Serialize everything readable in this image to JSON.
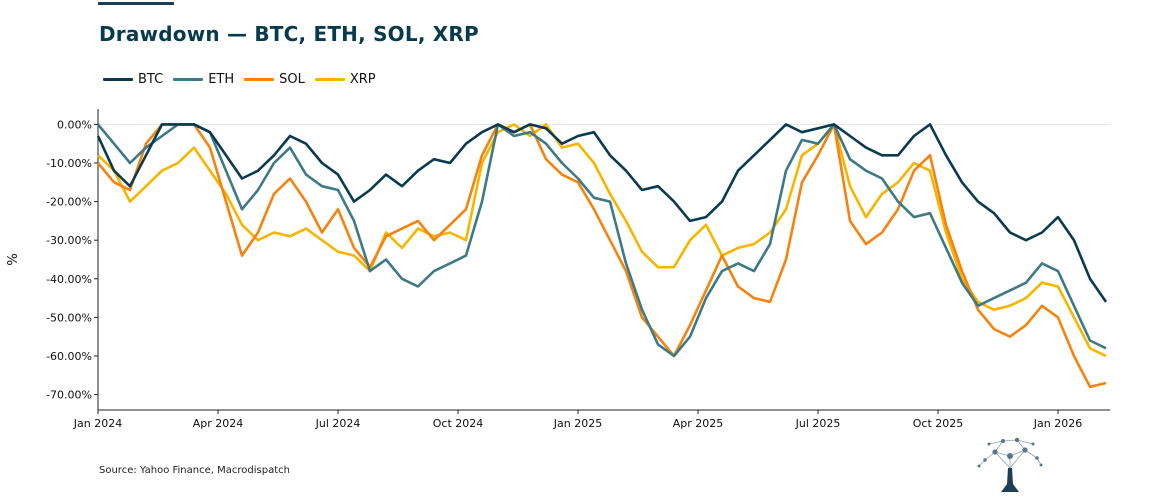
{
  "page": {
    "title": "Drawdown — BTC, ETH, SOL, XRP",
    "source": "Source: Yahoo Finance, Macrodispatch"
  },
  "colors": {
    "BTC": "#0a3a4f",
    "ETH": "#3e7a86",
    "SOL": "#f5830f",
    "XRP": "#f7b500"
  },
  "icons": {
    "logo": "tree-network-logo"
  },
  "chart_data": {
    "type": "line",
    "title": "Drawdown — BTC, ETH, SOL, XRP",
    "xlabel": "",
    "ylabel": "%",
    "ylim": [
      -74,
      4
    ],
    "xlim": [
      0,
      25.3
    ],
    "x_unit": "months since Jan 2024",
    "yticks": [
      0,
      -10,
      -20,
      -30,
      -40,
      -50,
      -60,
      -70
    ],
    "ytick_labels": [
      "0.00%",
      "-10.00%",
      "-20.00%",
      "-30.00%",
      "-40.00%",
      "-50.00%",
      "-60.00%",
      "-70.00%"
    ],
    "xticks": [
      0,
      3,
      6,
      9,
      12,
      15,
      18,
      21,
      24
    ],
    "xtick_labels": [
      "Jan 2024",
      "Apr 2024",
      "Jul 2024",
      "Oct 2024",
      "Jan 2025",
      "Apr 2025",
      "Jul 2025",
      "Oct 2025",
      "Jan 2026"
    ],
    "grid": "zero-line only",
    "legend_position": "top-left",
    "series": [
      {
        "name": "BTC",
        "x": [
          0,
          0.4,
          0.8,
          1.2,
          1.6,
          2.0,
          2.4,
          2.8,
          3.2,
          3.6,
          4.0,
          4.4,
          4.8,
          5.2,
          5.6,
          6.0,
          6.4,
          6.8,
          7.2,
          7.6,
          8.0,
          8.4,
          8.8,
          9.2,
          9.6,
          10.0,
          10.4,
          10.8,
          11.2,
          11.6,
          12.0,
          12.4,
          12.8,
          13.2,
          13.6,
          14.0,
          14.4,
          14.8,
          15.2,
          15.6,
          16.0,
          16.4,
          16.8,
          17.2,
          17.6,
          18.0,
          18.4,
          18.8,
          19.2,
          19.6,
          20.0,
          20.4,
          20.8,
          21.2,
          21.6,
          22.0,
          22.4,
          22.8,
          23.2,
          23.6,
          24.0,
          24.4,
          24.8,
          25.2
        ],
        "values": [
          -3,
          -12,
          -16,
          -8,
          0,
          0,
          0,
          -2,
          -8,
          -14,
          -12,
          -8,
          -3,
          -5,
          -10,
          -13,
          -20,
          -17,
          -13,
          -16,
          -12,
          -9,
          -10,
          -5,
          -2,
          0,
          -2,
          0,
          -1,
          -5,
          -3,
          -2,
          -8,
          -12,
          -17,
          -16,
          -20,
          -25,
          -24,
          -20,
          -12,
          -8,
          -4,
          0,
          -2,
          -1,
          0,
          -3,
          -6,
          -8,
          -8,
          -3,
          0,
          -8,
          -15,
          -20,
          -23,
          -28,
          -30,
          -28,
          -24,
          -30,
          -40,
          -46
        ]
      },
      {
        "name": "ETH",
        "x": [
          0,
          0.4,
          0.8,
          1.2,
          1.6,
          2.0,
          2.4,
          2.8,
          3.2,
          3.6,
          4.0,
          4.4,
          4.8,
          5.2,
          5.6,
          6.0,
          6.4,
          6.8,
          7.2,
          7.6,
          8.0,
          8.4,
          8.8,
          9.2,
          9.6,
          10.0,
          10.4,
          10.8,
          11.2,
          11.6,
          12.0,
          12.4,
          12.8,
          13.2,
          13.6,
          14.0,
          14.4,
          14.8,
          15.2,
          15.6,
          16.0,
          16.4,
          16.8,
          17.2,
          17.6,
          18.0,
          18.4,
          18.8,
          19.2,
          19.6,
          20.0,
          20.4,
          20.8,
          21.2,
          21.6,
          22.0,
          22.4,
          22.8,
          23.2,
          23.6,
          24.0,
          24.4,
          24.8,
          25.2
        ],
        "values": [
          0,
          -5,
          -10,
          -6,
          -3,
          0,
          0,
          -2,
          -12,
          -22,
          -17,
          -10,
          -6,
          -13,
          -16,
          -17,
          -25,
          -38,
          -35,
          -40,
          -42,
          -38,
          -36,
          -34,
          -20,
          0,
          -3,
          -2,
          -5,
          -10,
          -14,
          -19,
          -20,
          -36,
          -48,
          -57,
          -60,
          -55,
          -45,
          -38,
          -36,
          -38,
          -31,
          -12,
          -4,
          -5,
          0,
          -9,
          -12,
          -14,
          -20,
          -24,
          -23,
          -32,
          -41,
          -47,
          -45,
          -43,
          -41,
          -36,
          -38,
          -47,
          -56,
          -58
        ]
      },
      {
        "name": "SOL",
        "x": [
          0,
          0.4,
          0.8,
          1.2,
          1.6,
          2.0,
          2.4,
          2.8,
          3.2,
          3.6,
          4.0,
          4.4,
          4.8,
          5.2,
          5.6,
          6.0,
          6.4,
          6.8,
          7.2,
          7.6,
          8.0,
          8.4,
          8.8,
          9.2,
          9.6,
          10.0,
          10.4,
          10.8,
          11.2,
          11.6,
          12.0,
          12.4,
          12.8,
          13.2,
          13.6,
          14.0,
          14.4,
          14.8,
          15.2,
          15.6,
          16.0,
          16.4,
          16.8,
          17.2,
          17.6,
          18.0,
          18.4,
          18.8,
          19.2,
          19.6,
          20.0,
          20.4,
          20.8,
          21.2,
          21.6,
          22.0,
          22.4,
          22.8,
          23.2,
          23.6,
          24.0,
          24.4,
          24.8,
          25.2
        ],
        "values": [
          -10,
          -15,
          -17,
          -5,
          0,
          0,
          0,
          -6,
          -20,
          -34,
          -28,
          -18,
          -14,
          -20,
          -28,
          -22,
          -32,
          -37,
          -29,
          -27,
          -25,
          -30,
          -26,
          -22,
          -8,
          0,
          -2,
          0,
          -9,
          -13,
          -15,
          -22,
          -30,
          -38,
          -50,
          -55,
          -60,
          -52,
          -43,
          -34,
          -42,
          -45,
          -46,
          -35,
          -15,
          -8,
          0,
          -25,
          -31,
          -28,
          -22,
          -12,
          -8,
          -26,
          -38,
          -48,
          -53,
          -55,
          -52,
          -47,
          -50,
          -60,
          -68,
          -67
        ]
      },
      {
        "name": "XRP",
        "x": [
          0,
          0.4,
          0.8,
          1.2,
          1.6,
          2.0,
          2.4,
          2.8,
          3.2,
          3.6,
          4.0,
          4.4,
          4.8,
          5.2,
          5.6,
          6.0,
          6.4,
          6.8,
          7.2,
          7.6,
          8.0,
          8.4,
          8.8,
          9.2,
          9.6,
          10.0,
          10.4,
          10.8,
          11.2,
          11.6,
          12.0,
          12.4,
          12.8,
          13.2,
          13.6,
          14.0,
          14.4,
          14.8,
          15.2,
          15.6,
          16.0,
          16.4,
          16.8,
          17.2,
          17.6,
          18.0,
          18.4,
          18.8,
          19.2,
          19.6,
          20.0,
          20.4,
          20.8,
          21.2,
          21.6,
          22.0,
          22.4,
          22.8,
          23.2,
          23.6,
          24.0,
          24.4,
          24.8,
          25.2
        ],
        "values": [
          -8,
          -12,
          -20,
          -16,
          -12,
          -10,
          -6,
          -12,
          -18,
          -26,
          -30,
          -28,
          -29,
          -27,
          -30,
          -33,
          -34,
          -38,
          -28,
          -32,
          -27,
          -29,
          -28,
          -30,
          -10,
          -2,
          0,
          -3,
          0,
          -6,
          -5,
          -10,
          -18,
          -25,
          -33,
          -37,
          -37,
          -30,
          -26,
          -34,
          -32,
          -31,
          -28,
          -22,
          -8,
          -5,
          0,
          -16,
          -24,
          -18,
          -15,
          -10,
          -12,
          -28,
          -40,
          -46,
          -48,
          -47,
          -45,
          -41,
          -42,
          -50,
          -58,
          -60
        ]
      }
    ]
  }
}
